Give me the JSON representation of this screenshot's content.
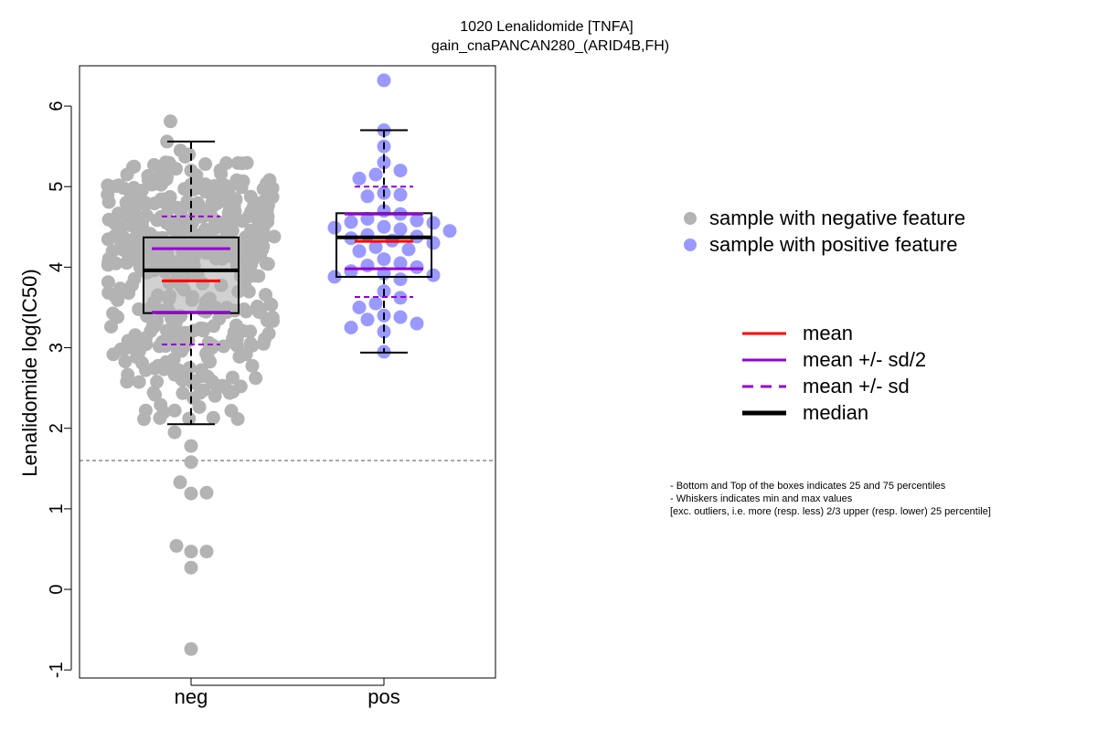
{
  "chart_data": {
    "type": "scatter",
    "title": "1020 Lenalidomide [TNFA]",
    "subtitle": "gain_cnaPANCAN280_(ARID4B,FH)",
    "ylabel": "Lenalidomide log(IC50)",
    "xlabel": "",
    "categories": [
      "neg",
      "pos"
    ],
    "ylim": [
      -1.1,
      6.5
    ],
    "yticks": [
      "-1",
      "0",
      "1",
      "2",
      "3",
      "4",
      "5",
      "6"
    ],
    "reference_line": 1.6,
    "groups": [
      {
        "name": "neg",
        "color": "#b3b3b3",
        "box": {
          "q1": 3.43,
          "median": 3.96,
          "q3": 4.37,
          "whisker_low": 2.05,
          "whisker_high": 5.56
        },
        "mean": 3.83,
        "mean_minus_half_sd": 3.44,
        "mean_plus_half_sd": 4.23,
        "mean_minus_sd": 3.04,
        "mean_plus_sd": 4.63,
        "low_points": [
          1.95,
          1.78,
          1.58,
          1.33,
          1.19,
          1.2,
          0.54,
          0.47,
          0.47,
          0.27,
          -0.74
        ],
        "high_points": [
          5.81,
          5.56,
          5.45,
          5.4,
          5.37,
          5.3,
          5.28,
          5.25,
          5.2,
          5.15
        ]
      },
      {
        "name": "pos",
        "color": "#9999ff",
        "box": {
          "q1": 3.88,
          "median": 4.37,
          "q3": 4.67,
          "whisker_low": 2.94,
          "whisker_high": 5.7
        },
        "mean": 4.32,
        "mean_minus_half_sd": 3.98,
        "mean_plus_half_sd": 4.66,
        "mean_minus_sd": 3.63,
        "mean_plus_sd": 5.0,
        "points": [
          6.32,
          5.7,
          5.5,
          5.3,
          5.2,
          5.15,
          5.1,
          4.92,
          4.9,
          4.88,
          4.7,
          4.66,
          4.6,
          4.58,
          4.56,
          4.55,
          4.5,
          4.49,
          4.47,
          4.45,
          4.4,
          4.38,
          4.36,
          4.33,
          4.3,
          4.25,
          4.22,
          4.2,
          4.1,
          4.05,
          4.02,
          4.0,
          3.95,
          3.92,
          3.9,
          3.88,
          3.85,
          3.7,
          3.62,
          3.55,
          3.5,
          3.4,
          3.38,
          3.35,
          3.3,
          3.25,
          3.2,
          2.95
        ]
      }
    ]
  },
  "legend_points": {
    "items": [
      {
        "label": "sample with negative feature",
        "color": "#b3b3b3"
      },
      {
        "label": "sample with positive feature",
        "color": "#9999ff"
      }
    ]
  },
  "legend_lines": {
    "items": [
      {
        "label": "mean",
        "color": "#ff0000",
        "style": "solid"
      },
      {
        "label": "mean +/- sd/2",
        "color": "#9400d3",
        "style": "solid"
      },
      {
        "label": "mean +/- sd",
        "color": "#9400d3",
        "style": "dashed"
      },
      {
        "label": "median",
        "color": "#000000",
        "style": "thick"
      }
    ]
  },
  "note": {
    "line1": "- Bottom and Top of the boxes indicates 25 and 75 percentiles",
    "line2": "- Whiskers indicates min and max values",
    "line3": "[exc. outliers, i.e. more (resp. less) 2/3 upper (resp. lower) 25 percentile]"
  }
}
